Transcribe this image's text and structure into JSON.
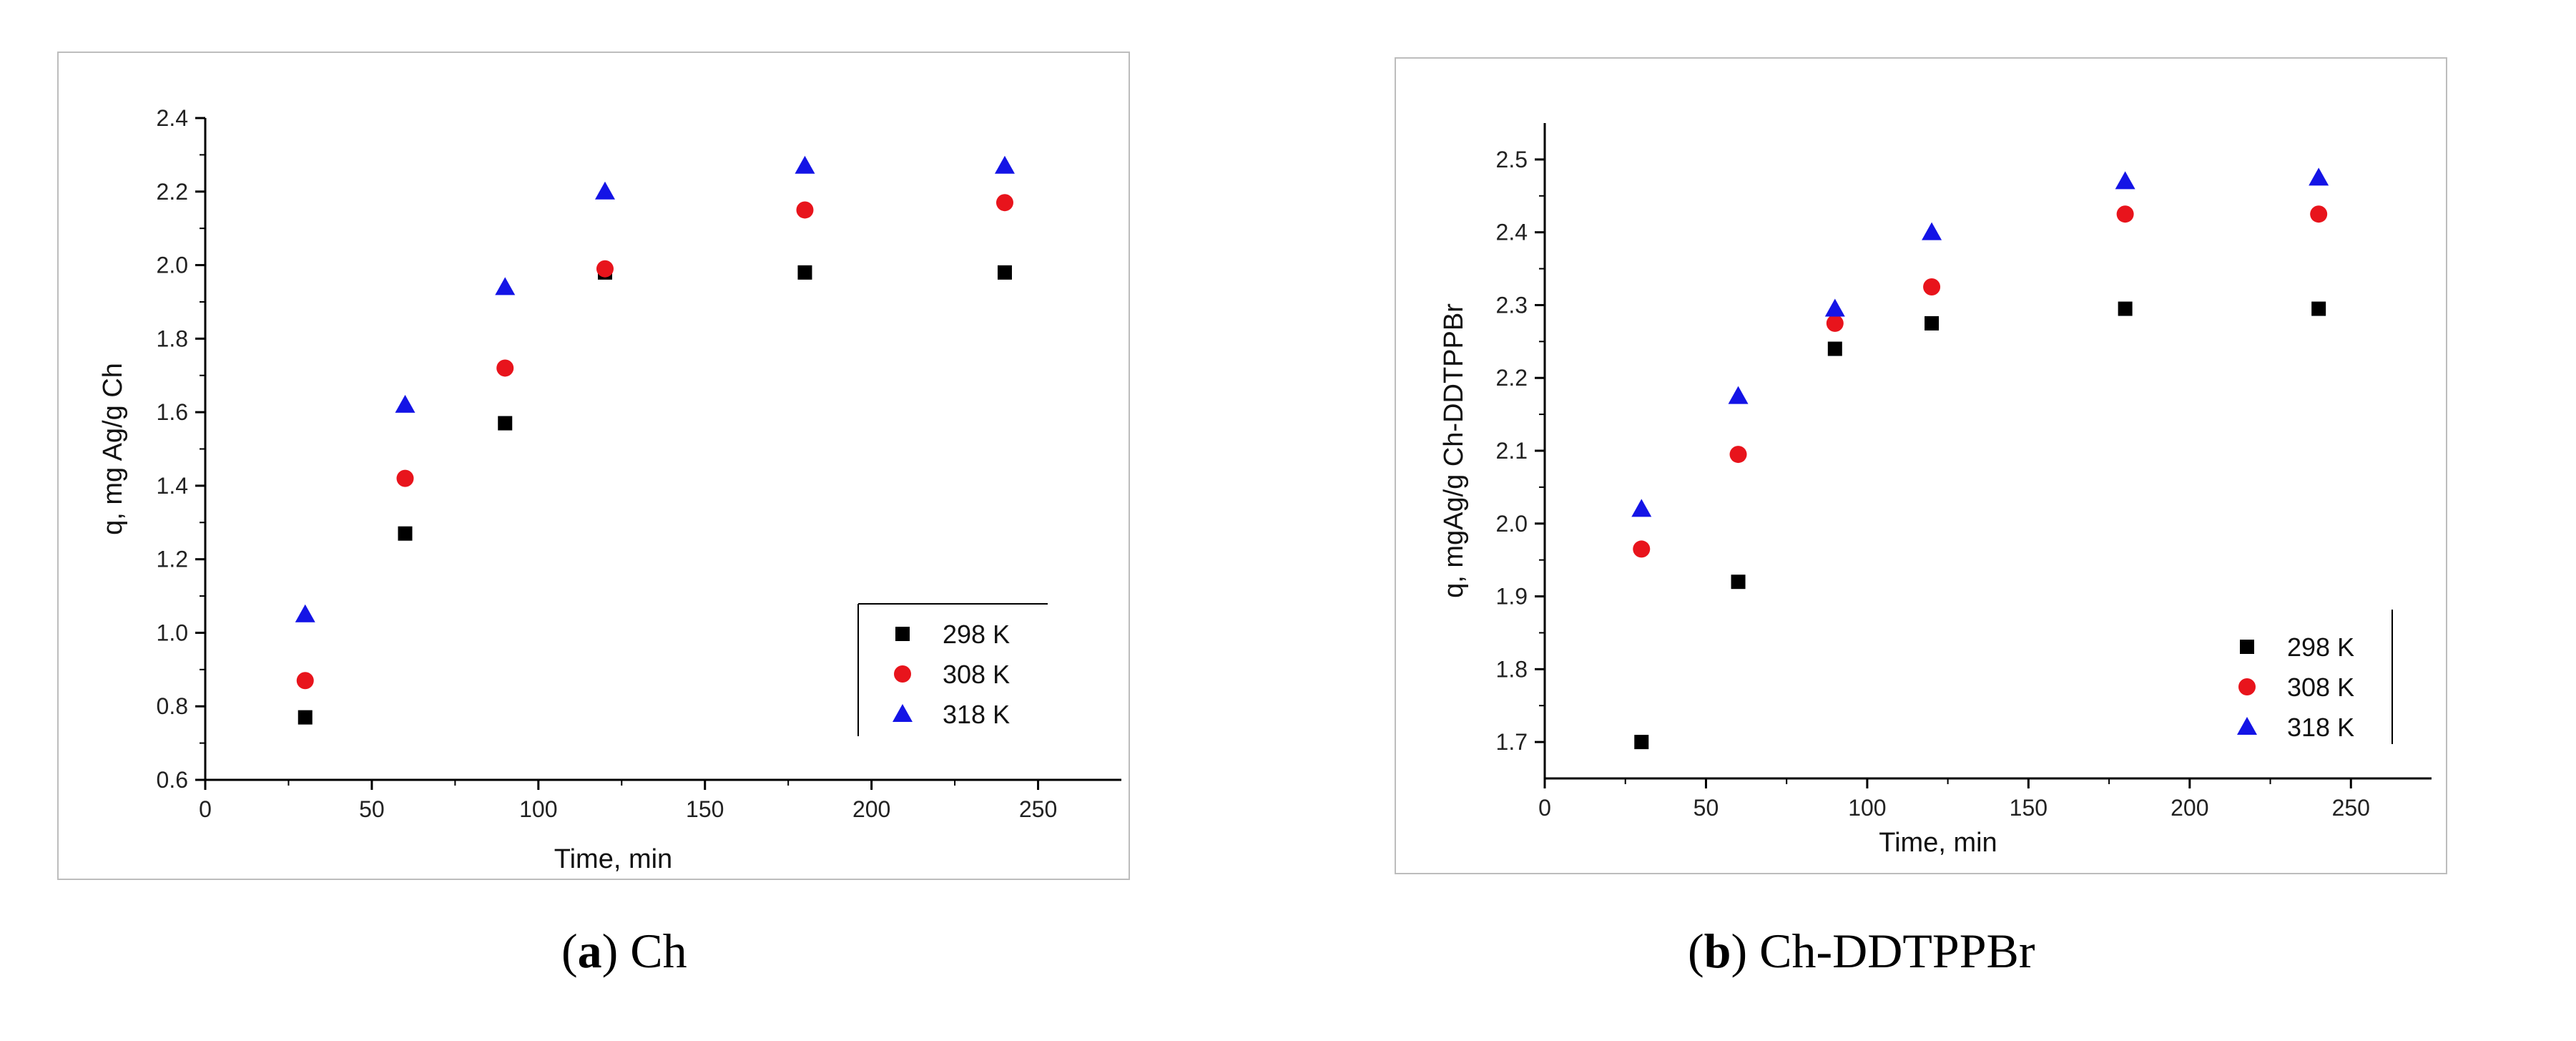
{
  "chart_data": [
    {
      "type": "scatter",
      "caption_letter": "a",
      "caption_rest": ") Ch",
      "xlabel": "Time, min",
      "ylabel": "q, mg Ag/g Ch",
      "xlim": [
        0,
        275
      ],
      "ylim": [
        0.6,
        2.4
      ],
      "xticks": [
        0,
        50,
        100,
        150,
        200,
        250
      ],
      "yticks": [
        0.6,
        0.8,
        1.0,
        1.2,
        1.4,
        1.6,
        1.8,
        2.0,
        2.2,
        2.4
      ],
      "ytick_decimals": 1,
      "legend_position": "bottom-right",
      "x": [
        30,
        60,
        90,
        120,
        180,
        240
      ],
      "series": [
        {
          "name": "298 K",
          "marker": "square",
          "color": "#000000",
          "values": [
            0.77,
            1.27,
            1.57,
            1.98,
            1.98,
            1.98
          ]
        },
        {
          "name": "308 K",
          "marker": "circle",
          "color": "#e8141c",
          "values": [
            0.87,
            1.42,
            1.72,
            1.99,
            2.15,
            2.17
          ]
        },
        {
          "name": "318 K",
          "marker": "triangle",
          "color": "#1414e6",
          "values": [
            1.05,
            1.62,
            1.94,
            2.2,
            2.27,
            2.27
          ]
        }
      ]
    },
    {
      "type": "scatter",
      "caption_letter": "b",
      "caption_rest": ") Ch-DDTPPBr",
      "xlabel": "Time, min",
      "ylabel": "q, mgAg/g Ch-DDTPPBr",
      "xlim": [
        0,
        275
      ],
      "ylim": [
        1.65,
        2.55
      ],
      "xticks": [
        0,
        50,
        100,
        150,
        200,
        250
      ],
      "yticks": [
        1.7,
        1.8,
        1.9,
        2.0,
        2.1,
        2.2,
        2.3,
        2.4,
        2.5
      ],
      "ytick_decimals": 1,
      "legend_position": "bottom-right",
      "x": [
        30,
        60,
        90,
        120,
        180,
        240
      ],
      "series": [
        {
          "name": "298 K",
          "marker": "square",
          "color": "#000000",
          "values": [
            1.7,
            1.92,
            2.24,
            2.275,
            2.295,
            2.295
          ]
        },
        {
          "name": "308 K",
          "marker": "circle",
          "color": "#e8141c",
          "values": [
            1.965,
            2.095,
            2.275,
            2.325,
            2.425,
            2.425
          ]
        },
        {
          "name": "318 K",
          "marker": "triangle",
          "color": "#1414e6",
          "values": [
            2.02,
            2.175,
            2.295,
            2.4,
            2.47,
            2.475
          ]
        }
      ]
    }
  ]
}
